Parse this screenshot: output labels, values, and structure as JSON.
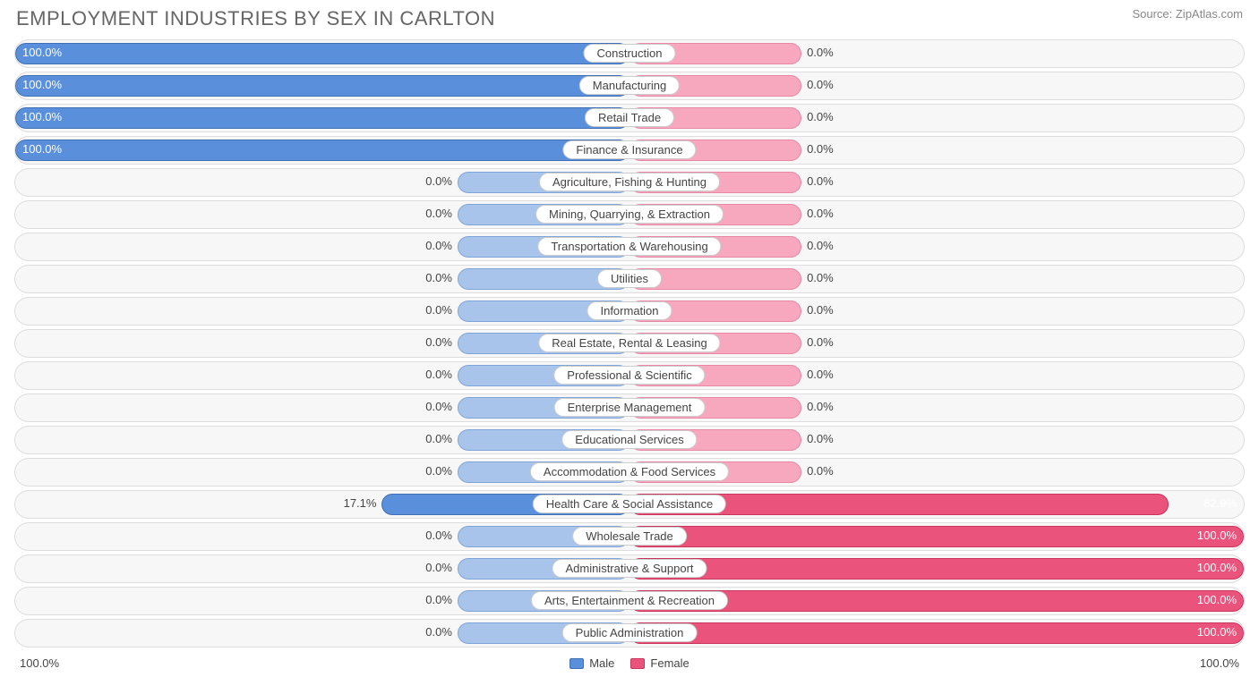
{
  "title": "EMPLOYMENT INDUSTRIES BY SEX IN CARLTON",
  "source": "Source: ZipAtlas.com",
  "axis_left": "100.0%",
  "axis_right": "100.0%",
  "legend": {
    "male": "Male",
    "female": "Female"
  },
  "colors": {
    "male_full": "#5a8fdb",
    "male_light": "#a8c4ea",
    "female_full": "#e9537c",
    "female_light": "#f7a8bf",
    "row_bg": "#f7f7f7",
    "row_border": "#dddddd",
    "text": "#444444"
  },
  "chart": {
    "type": "diverging-bar",
    "stub_pct": 28,
    "rows": [
      {
        "label": "Construction",
        "male": 100.0,
        "female": 0.0
      },
      {
        "label": "Manufacturing",
        "male": 100.0,
        "female": 0.0
      },
      {
        "label": "Retail Trade",
        "male": 100.0,
        "female": 0.0
      },
      {
        "label": "Finance & Insurance",
        "male": 100.0,
        "female": 0.0
      },
      {
        "label": "Agriculture, Fishing & Hunting",
        "male": 0.0,
        "female": 0.0
      },
      {
        "label": "Mining, Quarrying, & Extraction",
        "male": 0.0,
        "female": 0.0
      },
      {
        "label": "Transportation & Warehousing",
        "male": 0.0,
        "female": 0.0
      },
      {
        "label": "Utilities",
        "male": 0.0,
        "female": 0.0
      },
      {
        "label": "Information",
        "male": 0.0,
        "female": 0.0
      },
      {
        "label": "Real Estate, Rental & Leasing",
        "male": 0.0,
        "female": 0.0
      },
      {
        "label": "Professional & Scientific",
        "male": 0.0,
        "female": 0.0
      },
      {
        "label": "Enterprise Management",
        "male": 0.0,
        "female": 0.0
      },
      {
        "label": "Educational Services",
        "male": 0.0,
        "female": 0.0
      },
      {
        "label": "Accommodation & Food Services",
        "male": 0.0,
        "female": 0.0
      },
      {
        "label": "Health Care & Social Assistance",
        "male": 17.1,
        "female": 82.9
      },
      {
        "label": "Wholesale Trade",
        "male": 0.0,
        "female": 100.0
      },
      {
        "label": "Administrative & Support",
        "male": 0.0,
        "female": 100.0
      },
      {
        "label": "Arts, Entertainment & Recreation",
        "male": 0.0,
        "female": 100.0
      },
      {
        "label": "Public Administration",
        "male": 0.0,
        "female": 100.0
      }
    ]
  }
}
